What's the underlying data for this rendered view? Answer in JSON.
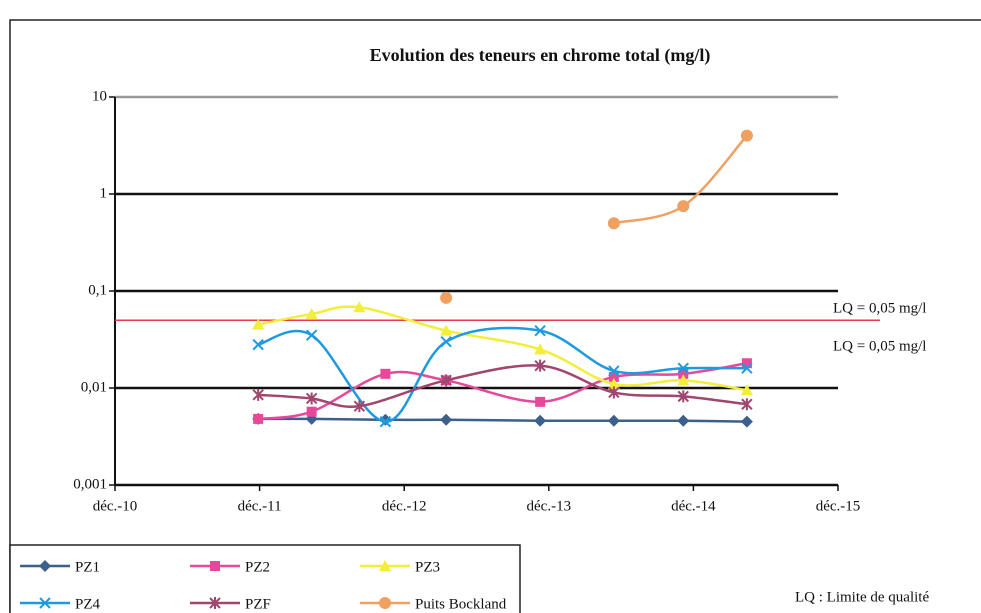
{
  "chart_data": {
    "type": "line",
    "title": "Evolution des teneurs en chrome total (mg/l)",
    "log_scale_y": true,
    "grid": true,
    "xlim": [
      2010.92,
      2015.92
    ],
    "xticks": [
      {
        "value": 2010.92,
        "label": "déc.-10"
      },
      {
        "value": 2011.92,
        "label": "déc.-11"
      },
      {
        "value": 2012.92,
        "label": "déc.-12"
      },
      {
        "value": 2013.92,
        "label": "déc.-13"
      },
      {
        "value": 2014.92,
        "label": "déc.-14"
      },
      {
        "value": 2015.92,
        "label": "déc.-15"
      }
    ],
    "ylim": [
      0.001,
      10
    ],
    "yticks": [
      {
        "value": 0.001,
        "label": "0,001"
      },
      {
        "value": 0.01,
        "label": "0,01"
      },
      {
        "value": 0.1,
        "label": "0,1"
      },
      1,
      10
    ],
    "series": [
      {
        "name": "PZ1",
        "color": "#3d5f8c",
        "marker": "diamond",
        "x": [
          2011.91,
          2012.28,
          2012.79,
          2013.21,
          2013.86,
          2014.37,
          2014.85,
          2015.29
        ],
        "values": [
          0.0048,
          0.0048,
          0.0047,
          0.0047,
          0.0046,
          0.0046,
          0.0046,
          0.0045
        ]
      },
      {
        "name": "PZ2",
        "color": "#e8489a",
        "marker": "square",
        "x": [
          2011.91,
          2012.28,
          2012.79,
          2013.21,
          2013.86,
          2014.37,
          2014.85,
          2015.29
        ],
        "values": [
          0.0048,
          0.0057,
          0.014,
          0.012,
          0.0072,
          0.013,
          0.014,
          0.018
        ]
      },
      {
        "name": "PZ3",
        "color": "#f2ee3a",
        "marker": "triangle",
        "x": [
          2011.91,
          2012.28,
          2012.61,
          2013.21,
          2013.86,
          2014.37,
          2014.85,
          2015.29
        ],
        "values": [
          0.045,
          0.058,
          0.068,
          0.039,
          0.025,
          0.011,
          0.012,
          0.0095
        ]
      },
      {
        "name": "PZ4",
        "color": "#1e9be0",
        "marker": "x",
        "x": [
          2011.91,
          2012.28,
          2012.79,
          2013.21,
          2013.86,
          2014.37,
          2014.85,
          2015.29
        ],
        "values": [
          0.028,
          0.035,
          0.0045,
          0.03,
          0.039,
          0.015,
          0.016,
          0.016
        ]
      },
      {
        "name": "PZF",
        "color": "#a0466f",
        "marker": "star",
        "x": [
          2011.91,
          2012.28,
          2012.61,
          2013.21,
          2013.86,
          2014.37,
          2014.85,
          2015.29
        ],
        "values": [
          0.0085,
          0.0078,
          0.0065,
          0.012,
          0.017,
          0.009,
          0.0082,
          0.0068
        ]
      },
      {
        "name": "Puits Bockland",
        "color": "#f0a060",
        "marker": "circle",
        "x": [
          2013.21,
          null,
          2014.37,
          2014.85,
          2015.29
        ],
        "values": [
          0.085,
          null,
          0.5,
          0.75,
          4
        ]
      }
    ],
    "reference_line": {
      "value": 0.05,
      "color": "#e83a4a"
    },
    "annotations": [
      {
        "text": "LQ = 0,05 mg/l",
        "color": "#e83a4a"
      },
      {
        "text": "LQ = 0,05 mg/l",
        "color": "#5aaa3a"
      }
    ],
    "footnote": "LQ : Limite de qualité"
  }
}
